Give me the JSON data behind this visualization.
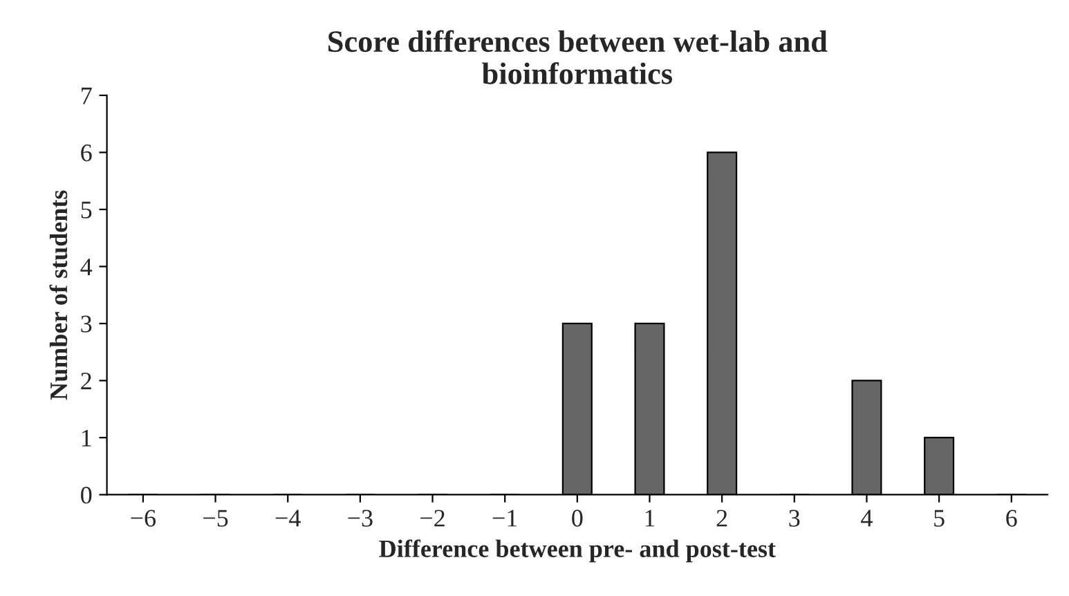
{
  "chart_data": {
    "type": "bar",
    "title": "Score differences between wet-lab and\nbioinformatics",
    "xlabel": "Difference between pre- and post-test",
    "ylabel": "Number of students",
    "categories": [
      "−6",
      "−5",
      "−4",
      "−3",
      "−2",
      "−1",
      "0",
      "1",
      "2",
      "3",
      "4",
      "5",
      "6"
    ],
    "values": [
      0,
      0,
      0,
      0,
      0,
      0,
      3,
      3,
      6,
      0,
      2,
      1,
      0
    ],
    "color": "#666666",
    "ylim": [
      0,
      7
    ],
    "yticks": [
      0,
      1,
      2,
      3,
      4,
      5,
      6,
      7
    ],
    "grid": false,
    "legend": false
  }
}
